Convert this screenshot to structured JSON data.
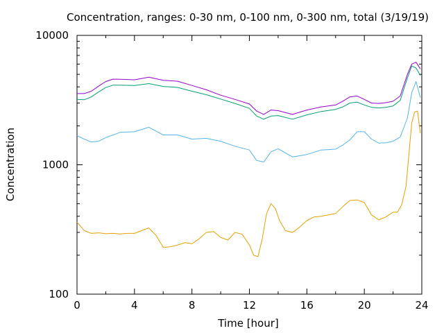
{
  "chart_data": {
    "type": "line",
    "title": "Concentration, ranges: 0-30 nm, 0-100 nm, 0-300 nm, total (3/19/19)",
    "xlabel": "Time [hour]",
    "ylabel": "Concentration",
    "xlim": [
      0,
      24
    ],
    "ylim": [
      100,
      10000
    ],
    "y_scale": "log",
    "grid": false,
    "legend": "none",
    "x_ticks": [
      "0",
      "4",
      "8",
      "12",
      "16",
      "20",
      "24"
    ],
    "y_ticks": [
      "100",
      "1000",
      "10000"
    ],
    "series": [
      {
        "color": "#e69f00",
        "x": [
          0,
          0.5,
          1,
          1.5,
          2,
          2.5,
          3,
          3.5,
          4,
          4.5,
          5,
          5.5,
          6,
          6.5,
          7,
          7.5,
          8,
          8.5,
          9,
          9.5,
          10,
          10.5,
          11,
          11.5,
          12,
          12.3,
          12.6,
          12.9,
          13.2,
          13.5,
          13.8,
          14.1,
          14.5,
          15,
          15.5,
          16,
          16.5,
          17,
          17.5,
          18,
          18.5,
          19,
          19.5,
          20,
          20.5,
          21,
          21.5,
          22,
          22.3,
          22.6,
          22.9,
          23.1,
          23.3,
          23.5,
          23.7,
          23.9
        ],
        "values": [
          360,
          310,
          295,
          298,
          293,
          295,
          292,
          295,
          295,
          310,
          325,
          285,
          230,
          232,
          240,
          250,
          245,
          268,
          300,
          305,
          275,
          262,
          300,
          290,
          240,
          200,
          195,
          270,
          420,
          500,
          460,
          370,
          310,
          300,
          330,
          370,
          395,
          400,
          410,
          420,
          475,
          530,
          535,
          510,
          410,
          375,
          395,
          430,
          430,
          490,
          680,
          1200,
          2100,
          2550,
          2600,
          1750
        ]
      },
      {
        "color": "#56b4e9",
        "x": [
          0,
          0.5,
          1,
          1.5,
          2,
          3,
          4,
          5,
          6,
          7,
          8,
          9,
          10,
          11,
          12,
          12.5,
          13,
          13.5,
          14,
          15,
          16,
          17,
          18,
          18.5,
          19,
          19.5,
          20,
          20.5,
          21,
          21.5,
          22,
          22.5,
          23,
          23.3,
          23.6,
          23.9
        ],
        "values": [
          1680,
          1580,
          1500,
          1520,
          1620,
          1780,
          1800,
          1950,
          1700,
          1700,
          1580,
          1600,
          1520,
          1390,
          1300,
          1080,
          1050,
          1260,
          1330,
          1150,
          1200,
          1300,
          1320,
          1420,
          1560,
          1800,
          1800,
          1580,
          1470,
          1480,
          1520,
          1640,
          2300,
          3600,
          4400,
          3300
        ]
      },
      {
        "color": "#009e73",
        "x": [
          0,
          0.5,
          1,
          1.5,
          2,
          2.5,
          3,
          4,
          5,
          6,
          7,
          8,
          9,
          10,
          11,
          12,
          12.5,
          13,
          13.5,
          14,
          15,
          16,
          17,
          18,
          18.5,
          19,
          19.5,
          20,
          20.5,
          21,
          21.5,
          22,
          22.5,
          23,
          23.3,
          23.6,
          23.9
        ],
        "values": [
          3200,
          3180,
          3350,
          3650,
          3950,
          4120,
          4120,
          4100,
          4240,
          4030,
          3960,
          3700,
          3480,
          3220,
          2980,
          2730,
          2380,
          2250,
          2380,
          2400,
          2250,
          2430,
          2580,
          2680,
          2800,
          3000,
          3050,
          2900,
          2780,
          2750,
          2780,
          2850,
          3150,
          4700,
          5800,
          5600,
          4900
        ]
      },
      {
        "color": "#9400d3",
        "x": [
          0,
          0.5,
          1,
          1.5,
          2,
          2.5,
          3,
          4,
          5,
          6,
          7,
          8,
          9,
          10,
          11,
          12,
          12.5,
          13,
          13.5,
          14,
          15,
          16,
          17,
          18,
          18.5,
          19,
          19.5,
          20,
          20.5,
          21,
          21.5,
          22,
          22.5,
          23,
          23.3,
          23.6,
          23.9
        ],
        "values": [
          3550,
          3550,
          3700,
          4050,
          4400,
          4590,
          4580,
          4540,
          4750,
          4500,
          4420,
          4100,
          3800,
          3450,
          3200,
          2950,
          2600,
          2450,
          2650,
          2620,
          2450,
          2650,
          2800,
          2900,
          3100,
          3350,
          3400,
          3200,
          3000,
          2980,
          3020,
          3100,
          3400,
          5000,
          6000,
          6200,
          5500
        ]
      }
    ]
  }
}
